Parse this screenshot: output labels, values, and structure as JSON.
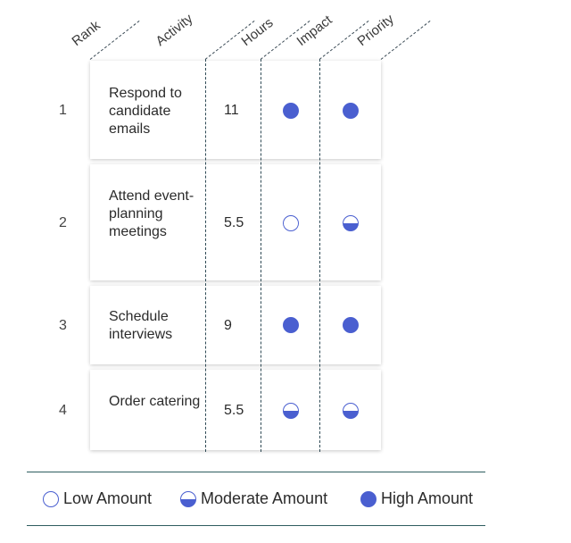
{
  "headers": {
    "rank": "Rank",
    "activity": "Activity",
    "hours": "Hours",
    "impact": "Impact",
    "priority": "Priority"
  },
  "rows": [
    {
      "rank": "1",
      "activity": "Respond to candidate emails",
      "hours": "11",
      "impact": "high",
      "priority": "high"
    },
    {
      "rank": "2",
      "activity": "Attend event-planning meetings",
      "hours": "5.5",
      "impact": "low",
      "priority": "moderate"
    },
    {
      "rank": "3",
      "activity": "Schedule interviews",
      "hours": "9",
      "impact": "high",
      "priority": "high"
    },
    {
      "rank": "4",
      "activity": "Order catering",
      "hours": "5.5",
      "impact": "moderate",
      "priority": "moderate"
    }
  ],
  "legend": {
    "low": "Low Amount",
    "moderate": "Moderate Amount",
    "high": "High Amount"
  },
  "colors": {
    "accent": "#4a5fd0",
    "rule": "#2e5d5f"
  }
}
